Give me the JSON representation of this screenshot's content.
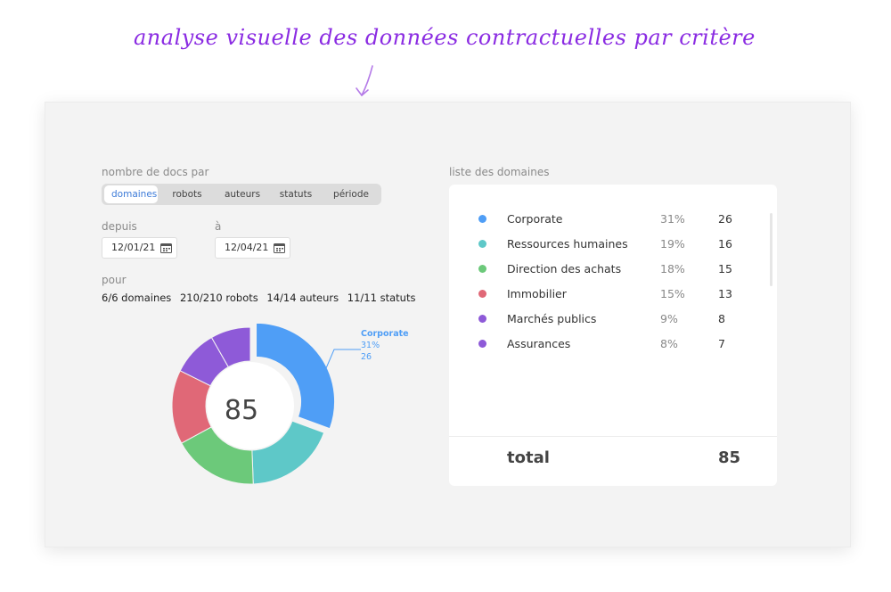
{
  "annotation": "analyse visuelle des données contractuelles par critère",
  "filters": {
    "group_label": "nombre de docs par",
    "tabs": [
      "domaines",
      "robots",
      "auteurs",
      "statuts",
      "période"
    ],
    "active_tab": "domaines",
    "from_label": "depuis",
    "from_value": "12/01/21",
    "to_label": "à",
    "to_value": "12/04/21",
    "scope_label": "pour",
    "scope": [
      "6/6 domaines",
      "210/210 robots",
      "14/14 auteurs",
      "11/11 statuts"
    ]
  },
  "chart_data": {
    "type": "pie",
    "total": 85,
    "center_label": "85",
    "categories": [
      "Corporate",
      "Ressources humaines",
      "Direction des achats",
      "Immobilier",
      "Marchés publics",
      "Assurances"
    ],
    "values": [
      26,
      16,
      15,
      13,
      8,
      7
    ],
    "percents": [
      "31%",
      "19%",
      "18%",
      "15%",
      "9%",
      "8%"
    ],
    "colors": [
      "#4f9ef6",
      "#5ec8c8",
      "#6cc97a",
      "#e06877",
      "#8e5ad8",
      "#8e5ad8"
    ],
    "highlighted": {
      "name": "Corporate",
      "percent": "31%",
      "value": "26"
    }
  },
  "list": {
    "title": "liste des domaines",
    "rows": [
      {
        "name": "Corporate",
        "percent": "31%",
        "count": "26",
        "color": "#4f9ef6"
      },
      {
        "name": "Ressources humaines",
        "percent": "19%",
        "count": "16",
        "color": "#5ec8c8"
      },
      {
        "name": "Direction des achats",
        "percent": "18%",
        "count": "15",
        "color": "#6cc97a"
      },
      {
        "name": "Immobilier",
        "percent": "15%",
        "count": "13",
        "color": "#e06877"
      },
      {
        "name": "Marchés publics",
        "percent": "9%",
        "count": "8",
        "color": "#8e5ad8"
      },
      {
        "name": "Assurances",
        "percent": "8%",
        "count": "7",
        "color": "#8e5ad8"
      }
    ],
    "total_label": "total",
    "total_value": "85"
  }
}
